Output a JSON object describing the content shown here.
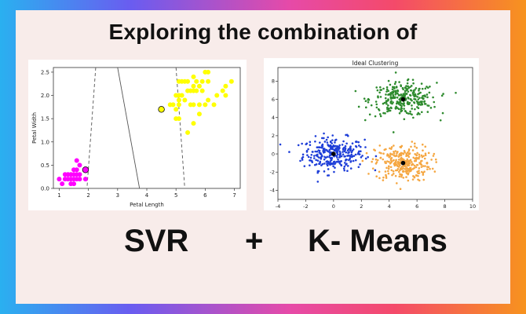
{
  "headline": "Exploring the combination of",
  "bottom": {
    "left": "SVR",
    "plus": "+",
    "right": "K- Means"
  },
  "colors": {
    "setosa": "#ff00ff",
    "virginica": "#ffff00",
    "cluster_blue": "#1f3fd8",
    "cluster_green": "#2e8b2e",
    "cluster_orange": "#f5a742"
  },
  "chart_data": [
    {
      "type": "scatter",
      "title": "",
      "xlabel": "Petal Length",
      "ylabel": "Petal Width",
      "xlim": [
        0.8,
        7.2
      ],
      "ylim": [
        0,
        2.6
      ],
      "xticks": [
        1,
        2,
        3,
        4,
        5,
        6,
        7
      ],
      "yticks": [
        0.0,
        0.5,
        1.0,
        1.5,
        2.0,
        2.5
      ],
      "grid": false,
      "series": [
        {
          "color": "#ff00ff",
          "points": [
            [
              1.0,
              0.2
            ],
            [
              1.1,
              0.1
            ],
            [
              1.2,
              0.2
            ],
            [
              1.3,
              0.2
            ],
            [
              1.3,
              0.3
            ],
            [
              1.4,
              0.1
            ],
            [
              1.4,
              0.2
            ],
            [
              1.4,
              0.3
            ],
            [
              1.5,
              0.1
            ],
            [
              1.5,
              0.2
            ],
            [
              1.5,
              0.4
            ],
            [
              1.6,
              0.2
            ],
            [
              1.6,
              0.4
            ],
            [
              1.6,
              0.6
            ],
            [
              1.7,
              0.2
            ],
            [
              1.7,
              0.3
            ],
            [
              1.7,
              0.5
            ],
            [
              1.9,
              0.2
            ],
            [
              1.9,
              0.4
            ],
            [
              1.2,
              0.3
            ],
            [
              1.5,
              0.3
            ],
            [
              1.6,
              0.3
            ]
          ]
        },
        {
          "color": "#ffff00",
          "points": [
            [
              4.8,
              1.8
            ],
            [
              4.9,
              1.8
            ],
            [
              5.0,
              1.5
            ],
            [
              5.0,
              2.0
            ],
            [
              5.1,
              1.5
            ],
            [
              5.1,
              1.8
            ],
            [
              5.1,
              1.9
            ],
            [
              5.1,
              2.0
            ],
            [
              5.1,
              2.3
            ],
            [
              5.2,
              2.0
            ],
            [
              5.2,
              2.3
            ],
            [
              5.3,
              1.9
            ],
            [
              5.3,
              2.3
            ],
            [
              5.4,
              2.1
            ],
            [
              5.4,
              2.3
            ],
            [
              5.5,
              1.8
            ],
            [
              5.5,
              2.1
            ],
            [
              5.6,
              1.4
            ],
            [
              5.6,
              1.8
            ],
            [
              5.6,
              2.1
            ],
            [
              5.6,
              2.2
            ],
            [
              5.6,
              2.4
            ],
            [
              5.7,
              2.1
            ],
            [
              5.7,
              2.3
            ],
            [
              5.8,
              1.6
            ],
            [
              5.8,
              1.8
            ],
            [
              5.8,
              2.2
            ],
            [
              5.9,
              2.1
            ],
            [
              5.9,
              2.3
            ],
            [
              6.0,
              1.8
            ],
            [
              6.0,
              2.5
            ],
            [
              6.1,
              1.9
            ],
            [
              6.1,
              2.3
            ],
            [
              6.1,
              2.5
            ],
            [
              6.3,
              1.8
            ],
            [
              6.4,
              2.0
            ],
            [
              6.6,
              2.1
            ],
            [
              6.7,
              2.0
            ],
            [
              6.7,
              2.2
            ],
            [
              6.9,
              2.3
            ],
            [
              5.0,
              1.7
            ],
            [
              5.4,
              1.2
            ]
          ]
        }
      ],
      "support_vectors": [
        [
          1.9,
          0.4
        ],
        [
          4.5,
          1.7
        ]
      ],
      "decision_boundary": [
        [
          3.0,
          2.6
        ],
        [
          3.75,
          0
        ]
      ],
      "margin_lines": [
        [
          [
            2.25,
            2.6
          ],
          [
            1.95,
            0
          ]
        ],
        [
          [
            5.0,
            2.6
          ],
          [
            5.3,
            0
          ]
        ]
      ]
    },
    {
      "type": "scatter",
      "title": "Ideal Clustering",
      "xlabel": "",
      "ylabel": "",
      "xlim": [
        -4,
        10
      ],
      "ylim": [
        -5,
        9.5
      ],
      "xticks": [
        -4,
        -2,
        0,
        2,
        4,
        6,
        8,
        10
      ],
      "yticks": [
        -4,
        -2,
        0,
        2,
        4,
        6,
        8
      ],
      "grid": false,
      "clusters": [
        {
          "color": "#1f3fd8",
          "center": [
            0,
            0
          ],
          "spread": [
            1.1,
            0.9
          ],
          "count": 300
        },
        {
          "color": "#2e8b2e",
          "center": [
            5,
            6
          ],
          "spread": [
            1.2,
            0.9
          ],
          "count": 300
        },
        {
          "color": "#f5a742",
          "center": [
            5,
            -1
          ],
          "spread": [
            1.0,
            1.0
          ],
          "count": 300
        }
      ],
      "centroids": [
        [
          0,
          0
        ],
        [
          5,
          6
        ],
        [
          5,
          -1
        ]
      ]
    }
  ]
}
